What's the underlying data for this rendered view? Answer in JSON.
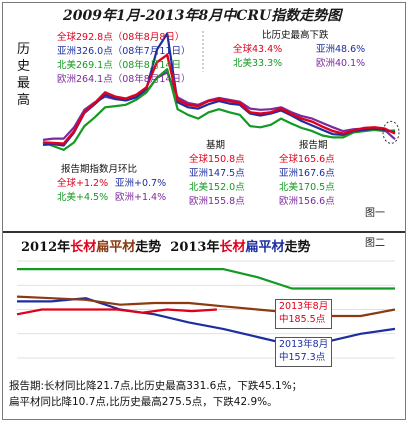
{
  "chart_data": [
    {
      "type": "line",
      "title": "2009年1月-2013年8月中CRU指数走势图",
      "ylabel": "历史最高",
      "series": [
        {
          "name": "全球",
          "color": "#e0001b",
          "values": [
            152,
            151,
            150,
            170,
            200,
            215,
            232,
            225,
            222,
            228,
            240,
            280,
            292,
            220,
            212,
            210,
            218,
            221,
            218,
            215,
            200,
            198,
            200,
            206,
            197,
            190,
            185,
            177,
            170,
            166,
            171,
            175,
            176,
            174,
            166
          ]
        },
        {
          "name": "亚洲",
          "color": "#1d2ea0",
          "values": [
            148,
            149,
            147,
            168,
            199,
            213,
            228,
            222,
            219,
            224,
            238,
            300,
            326,
            216,
            208,
            206,
            213,
            218,
            214,
            212,
            198,
            195,
            198,
            203,
            195,
            186,
            179,
            172,
            165,
            164,
            170,
            172,
            174,
            172,
            168
          ]
        },
        {
          "name": "北美",
          "color": "#139a22",
          "values": [
            152,
            146,
            140,
            152,
            178,
            192,
            208,
            210,
            212,
            220,
            232,
            255,
            269,
            205,
            196,
            190,
            200,
            205,
            200,
            196,
            178,
            176,
            180,
            190,
            182,
            175,
            170,
            163,
            160,
            160,
            168,
            170,
            172,
            170,
            171
          ]
        },
        {
          "name": "欧洲",
          "color": "#7a2a9c",
          "values": [
            156,
            158,
            158,
            176,
            204,
            216,
            225,
            221,
            219,
            224,
            233,
            255,
            264,
            224,
            215,
            212,
            219,
            223,
            220,
            217,
            206,
            204,
            205,
            208,
            200,
            194,
            190,
            183,
            176,
            170,
            173,
            174,
            175,
            172,
            157
          ]
        }
      ],
      "annotations": {
        "peak_header": "",
        "peaks": [
          {
            "region": "全球",
            "value": "292.8点",
            "date": "（08年8月8日）"
          },
          {
            "region": "亚洲",
            "value": "326.0点",
            "date": "（08年7月11日）"
          },
          {
            "region": "北美",
            "value": "269.1点",
            "date": "（08年8月14日"
          },
          {
            "region": "欧洲",
            "value": "264.1点",
            "date": "（08年8月14日）"
          }
        ],
        "decline_title": "比历史最高下跌",
        "declines": [
          {
            "region": "全球",
            "value": "43.4%"
          },
          {
            "region": "亚洲",
            "value": "48.6%"
          },
          {
            "region": "北美",
            "value": "33.3%"
          },
          {
            "region": "欧洲",
            "value": "40.1%"
          }
        ],
        "mom_title": "报告期指数月环比",
        "mom": [
          {
            "region": "全球",
            "value": "+1.2%"
          },
          {
            "region": "亚洲",
            "value": "+0.7%"
          },
          {
            "region": "北美",
            "value": "+4.5%"
          },
          {
            "region": "欧洲",
            "value": "+1.4%"
          }
        ],
        "base_title": "基期",
        "base": [
          {
            "region": "全球",
            "value": "150.8点"
          },
          {
            "region": "亚洲",
            "value": "147.5点"
          },
          {
            "region": "北美",
            "value": "152.0点"
          },
          {
            "region": "欧洲",
            "value": "155.8点"
          }
        ],
        "report_title": "报告期",
        "report": [
          {
            "region": "全球",
            "value": "165.6点"
          },
          {
            "region": "亚洲",
            "value": "167.6点"
          },
          {
            "region": "北美",
            "value": "170.5点"
          },
          {
            "region": "欧洲",
            "value": "156.6点"
          }
        ]
      },
      "grid": false,
      "legend": "none"
    },
    {
      "type": "line",
      "title": "2012年长材扁平材走势 2013年长材扁平材走势",
      "series": [
        {
          "name": "2012长材",
          "color": "#139a22",
          "values": [
            205,
            205,
            205,
            205,
            205,
            205,
            205,
            200,
            193,
            193,
            193,
            193
          ]
        },
        {
          "name": "2012扁平材",
          "color": "#1d2ea0",
          "values": [
            185,
            185,
            187,
            180,
            177,
            172,
            168,
            163,
            158,
            160,
            165,
            168
          ]
        },
        {
          "name": "2013长材",
          "color": "#8b3a12",
          "values": [
            188,
            187,
            186,
            183,
            184,
            184,
            182,
            180,
            178,
            176,
            176,
            180
          ]
        },
        {
          "name": "2013扁平材",
          "color": "#e0001b",
          "values": [
            177,
            180,
            180,
            180,
            180,
            178,
            180,
            179,
            180
          ]
        }
      ],
      "callouts": [
        {
          "label": "2013年8月",
          "value": "中185.5点",
          "series": "2013长材"
        },
        {
          "label": "2013年8月",
          "value": "中157.3点",
          "series": "2012扁平材"
        }
      ],
      "grid": true,
      "legend": "none"
    }
  ],
  "panel1": {
    "title": "2009年1月-2013年8月中CRU指数走势图",
    "side_label": [
      "历",
      "史",
      "最",
      "高"
    ],
    "figure_tag": "图一"
  },
  "panel2": {
    "title_a_prefix": "2012年",
    "title_a_long": "长材",
    "title_a_flat": "扁平材",
    "title_a_suffix": "走势",
    "title_b_prefix": "2013年",
    "title_b_long": "长材",
    "title_b_flat": "扁平材",
    "title_b_suffix": "走势",
    "figure_tag": "图二",
    "callout_long_label": "2013年8月",
    "callout_long_value": "中185.5点",
    "callout_flat_label": "2013年8月",
    "callout_flat_value": "中157.3点",
    "note_line1": "报告期:长材同比降21.7点,比历史最高331.6点，下跌45.1%；",
    "note_line2": "扁平材同比降10.7点,比历史最高275.5点，下跌42.9%。"
  }
}
